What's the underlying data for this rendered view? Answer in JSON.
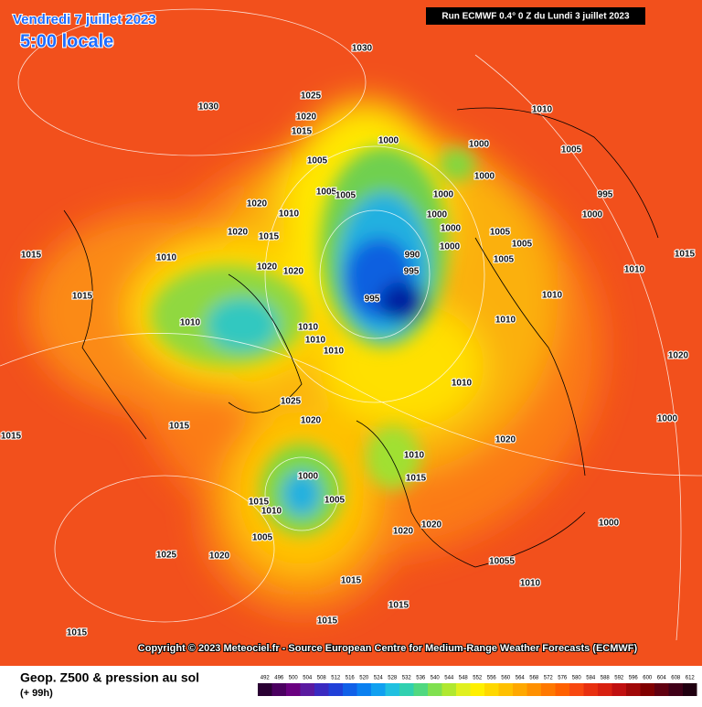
{
  "header": {
    "date": "Vendredi 7 juillet 2023",
    "time": "5:00 locale",
    "run": "Run ECMWF 0.4° 0 Z du Lundi 3 juillet 2023"
  },
  "copyright": "Copyright © 2023 Meteociel.fr - Source European Centre for Medium-Range Weather Forecasts (ECMWF)",
  "footer": {
    "label": "Geop. Z500 & pression au sol",
    "lead": "(+ 99h)"
  },
  "legend": {
    "values": [
      492,
      496,
      500,
      504,
      508,
      512,
      516,
      520,
      524,
      528,
      532,
      536,
      540,
      544,
      548,
      552,
      556,
      560,
      564,
      568,
      572,
      576,
      580,
      584,
      588,
      592,
      596,
      600,
      604,
      608,
      612
    ],
    "colors": [
      "#2a0033",
      "#4b0060",
      "#6a0080",
      "#5a1aa0",
      "#3a2ac0",
      "#2040d8",
      "#1060e8",
      "#0a80f0",
      "#10a0f0",
      "#20c0e0",
      "#30d0b0",
      "#50d880",
      "#80e050",
      "#b0e830",
      "#e0f020",
      "#fff000",
      "#ffd800",
      "#ffc000",
      "#ffa800",
      "#ff9000",
      "#ff7800",
      "#ff6000",
      "#f84810",
      "#e83010",
      "#d82010",
      "#c01010",
      "#a00808",
      "#800000",
      "#600010",
      "#400018",
      "#200010"
    ]
  },
  "isobars": [
    "1030",
    "1030",
    "1025",
    "1020",
    "1015",
    "1010",
    "1000",
    "1000",
    "1005",
    "1000",
    "1005",
    "1005",
    "1005",
    "1000",
    "995",
    "1000",
    "1000",
    "1000",
    "1005",
    "1005",
    "1000",
    "990",
    "995",
    "995",
    "1005",
    "1010",
    "1010",
    "1010",
    "1020",
    "1015",
    "1020",
    "1010",
    "1020",
    "1020",
    "1010",
    "1015",
    "1015",
    "1010",
    "1010",
    "1010",
    "1010",
    "1025",
    "1020",
    "1015",
    "1015",
    "1020",
    "1010",
    "1015",
    "1000",
    "1015",
    "1010",
    "1005",
    "1005",
    "1020",
    "1020",
    "1025",
    "1020",
    "10055",
    "1010",
    "1015",
    "1015",
    "1015",
    "1015",
    "1000",
    "1020",
    "1000",
    "1015",
    "1010"
  ]
}
